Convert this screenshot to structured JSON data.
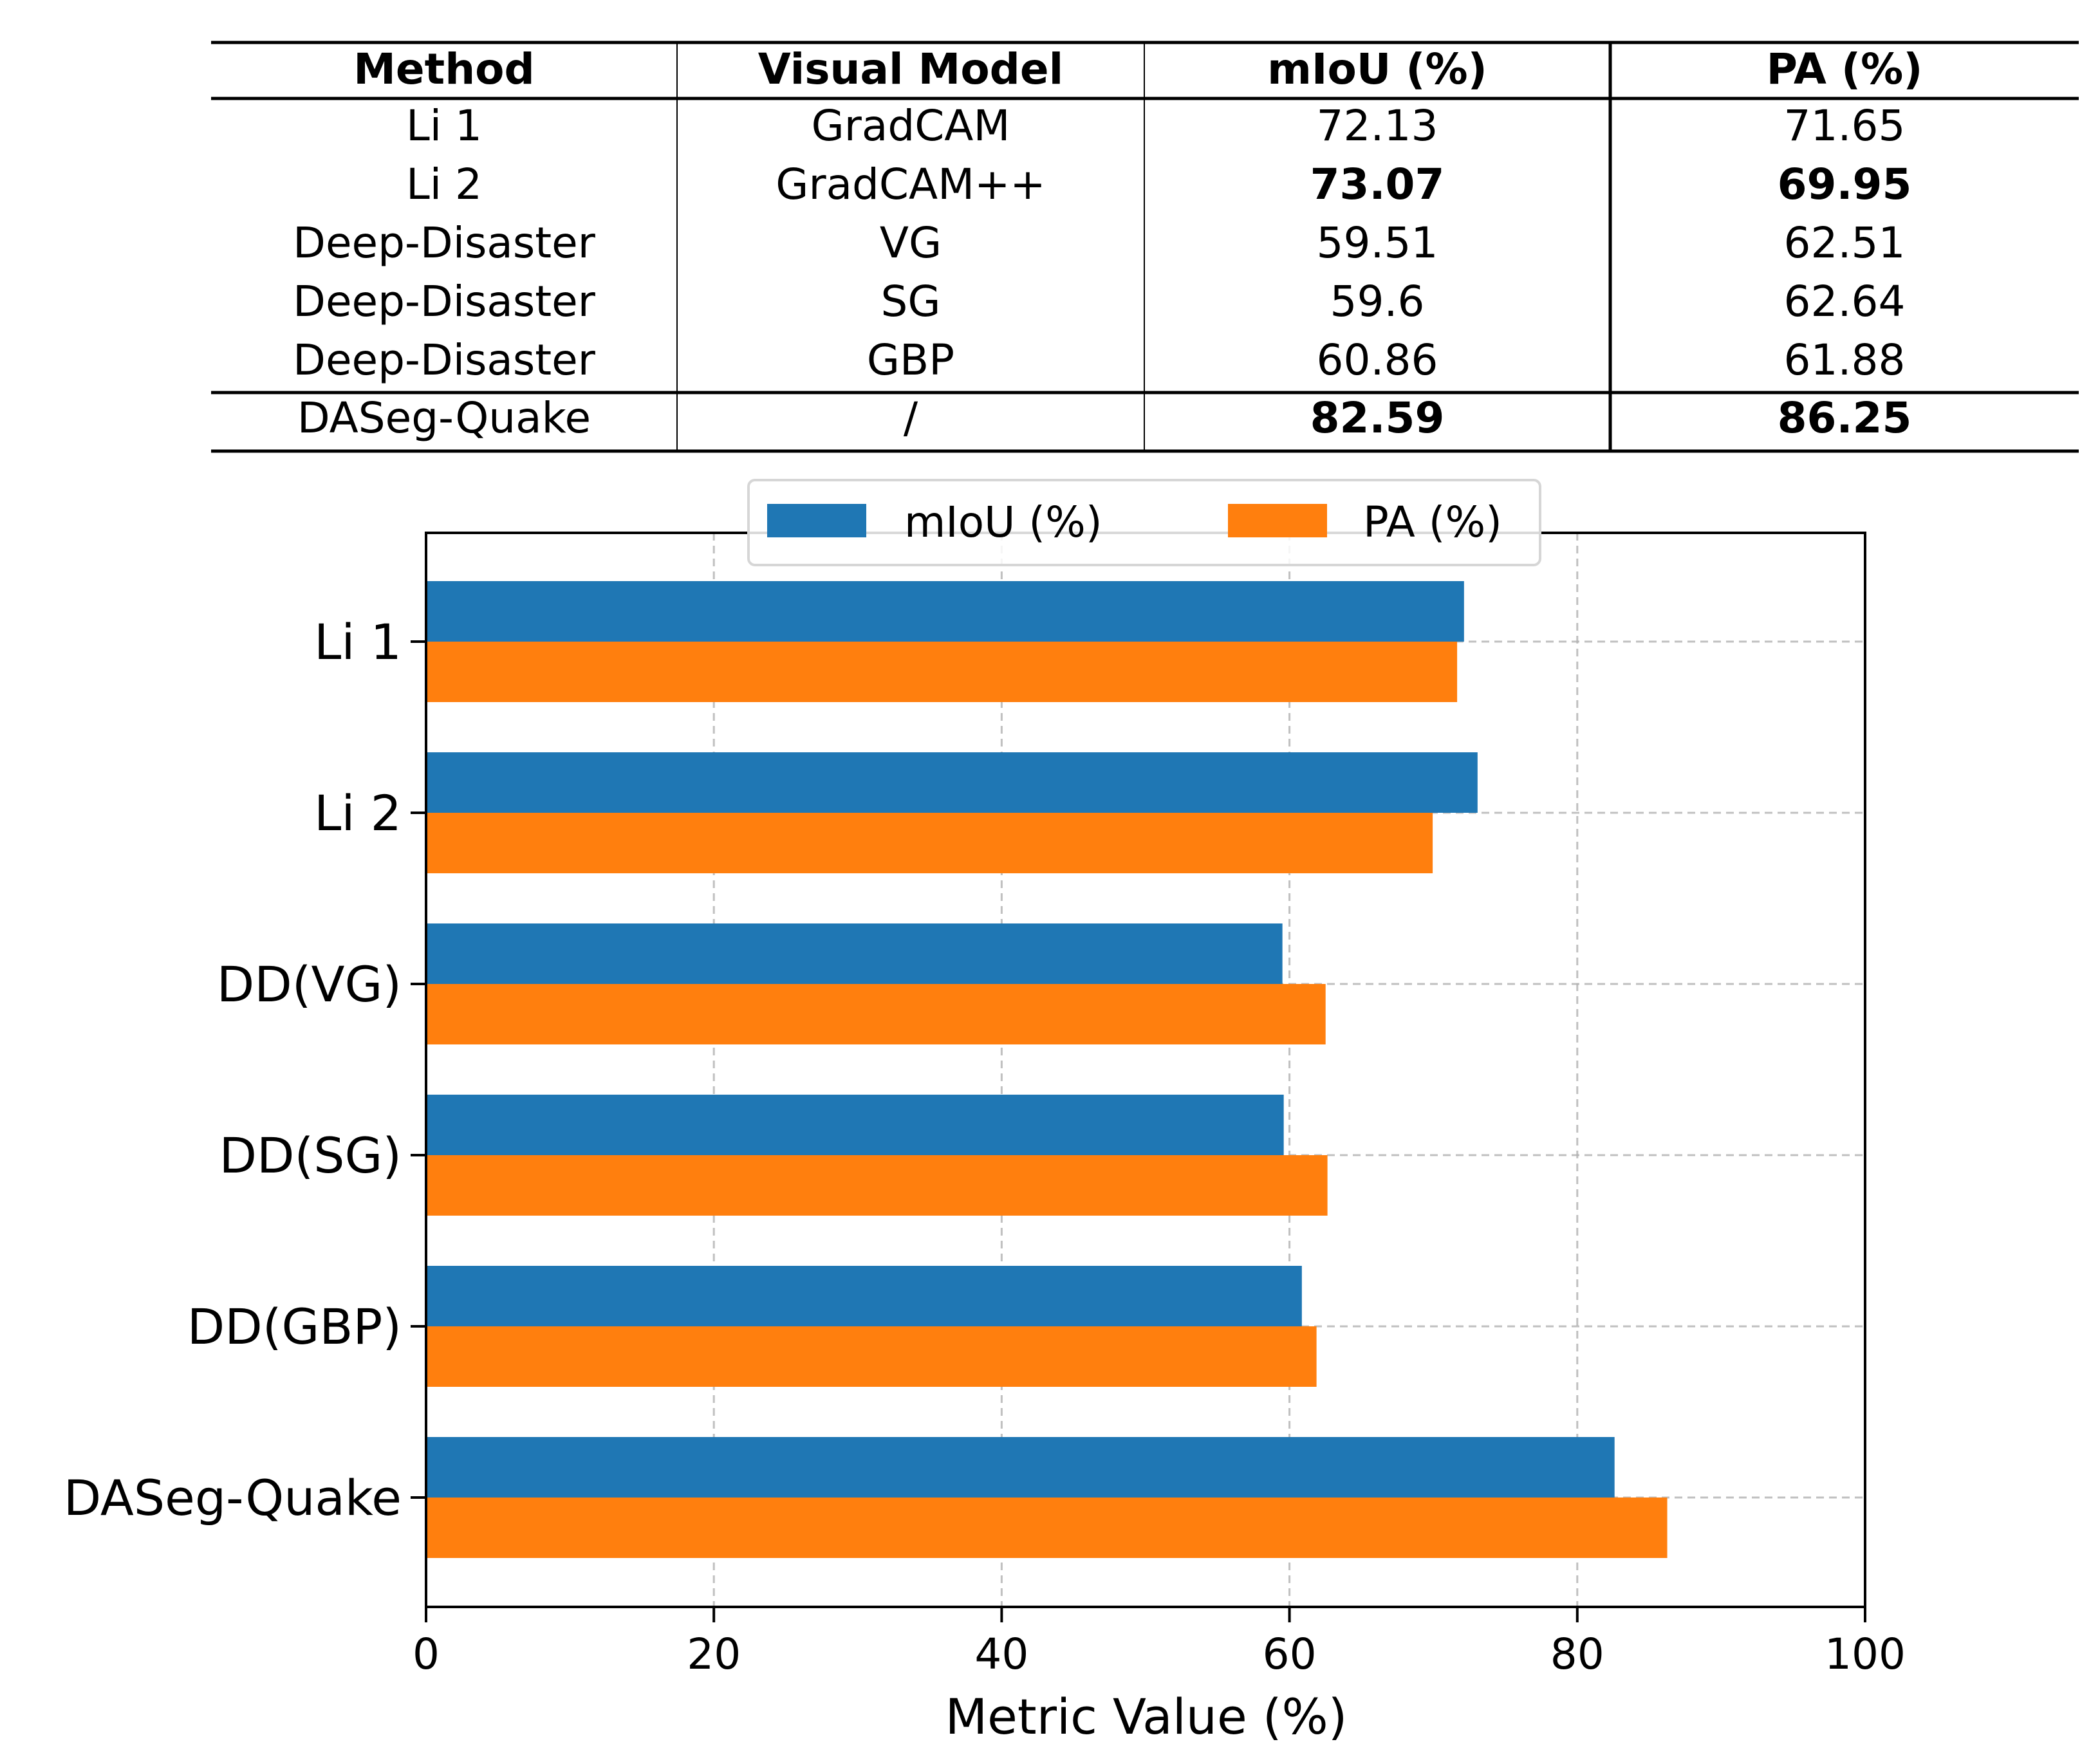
{
  "table": {
    "headers": [
      "Method",
      "Visual Model",
      "mIoU (%)",
      "PA (%)"
    ],
    "rows": [
      {
        "method": "Li 1",
        "model": "GradCAM",
        "miou": "72.13",
        "pa": "71.65"
      },
      {
        "method": "Li 2",
        "model": "GradCAM++",
        "miou": "73.07",
        "pa": "69.95"
      },
      {
        "method": "Deep-Disaster",
        "model": "VG",
        "miou": "59.51",
        "pa": "62.51"
      },
      {
        "method": "Deep-Disaster",
        "model": "SG",
        "miou": "59.6",
        "pa": "62.64"
      },
      {
        "method": "Deep-Disaster",
        "model": "GBP",
        "miou": "60.86",
        "pa": "61.88"
      },
      {
        "method": "DASeg-Quake",
        "model": "/",
        "miou": "82.59",
        "pa": "86.25"
      }
    ],
    "bold_cells": [
      {
        "row": 1,
        "col": "miou"
      },
      {
        "row": 1,
        "col": "pa"
      },
      {
        "row": 5,
        "col": "miou"
      },
      {
        "row": 5,
        "col": "pa"
      }
    ]
  },
  "chart_data": {
    "type": "bar",
    "orientation": "horizontal",
    "categories": [
      "Li 1",
      "Li 2",
      "DD(VG)",
      "DD(SG)",
      "DD(GBP)",
      "DASeg-Quake"
    ],
    "series": [
      {
        "name": "mIoU (%)",
        "color": "#1f77b4",
        "values": [
          72.13,
          73.07,
          59.51,
          59.6,
          60.86,
          82.59
        ]
      },
      {
        "name": "PA (%)",
        "color": "#ff7f0e",
        "values": [
          71.65,
          69.95,
          62.51,
          62.64,
          61.88,
          86.25
        ]
      }
    ],
    "xlabel": "Metric Value (%)",
    "ylabel": "",
    "xlim": [
      0,
      100
    ],
    "xticks": [
      0,
      20,
      40,
      60,
      80,
      100
    ],
    "grid": true,
    "legend_position": "top-center"
  }
}
